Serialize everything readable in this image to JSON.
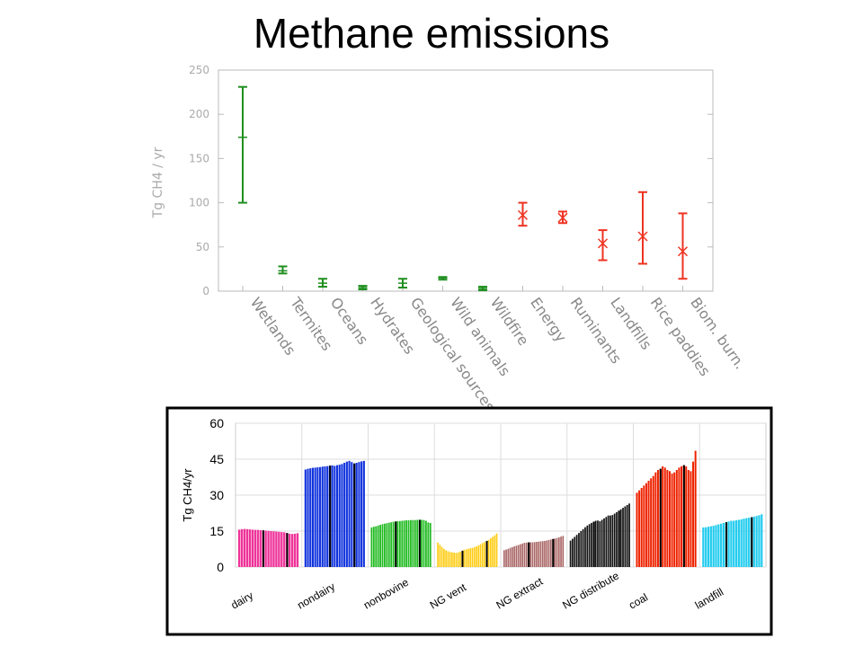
{
  "title": "Methane emissions",
  "chart_data": [
    {
      "type": "errorbar",
      "ylabel": "Tg CH4 / yr",
      "ylim": [
        0,
        250
      ],
      "yticks": [
        "0",
        "50",
        "100",
        "150",
        "200",
        "250"
      ],
      "grid": false,
      "points": [
        {
          "category": "Wetlands",
          "value": 174,
          "low": 100,
          "high": 231,
          "source": "natural",
          "color": "#1f8f1f"
        },
        {
          "category": "Termites",
          "value": 23,
          "low": 20,
          "high": 28,
          "source": "natural",
          "color": "#1f8f1f"
        },
        {
          "category": "Oceans",
          "value": 9,
          "low": 5,
          "high": 14,
          "source": "natural",
          "color": "#1f8f1f"
        },
        {
          "category": "Hydrates",
          "value": 4,
          "low": 2,
          "high": 6,
          "source": "natural",
          "color": "#1f8f1f"
        },
        {
          "category": "Geological sources",
          "value": 9,
          "low": 4,
          "high": 14,
          "source": "natural",
          "color": "#1f8f1f"
        },
        {
          "category": "Wild animals",
          "value": 15,
          "low": 13,
          "high": 16,
          "source": "natural",
          "color": "#1f8f1f"
        },
        {
          "category": "Wildfire",
          "value": 3,
          "low": 1,
          "high": 5,
          "source": "natural",
          "color": "#1f8f1f"
        },
        {
          "category": "Energy",
          "value": 86,
          "low": 74,
          "high": 100,
          "source": "anthropogenic",
          "color": "#ee3322"
        },
        {
          "category": "Ruminants",
          "value": 83,
          "low": 77,
          "high": 90,
          "source": "anthropogenic",
          "color": "#ee3322"
        },
        {
          "category": "Landfills",
          "value": 54,
          "low": 35,
          "high": 69,
          "source": "anthropogenic",
          "color": "#ee3322"
        },
        {
          "category": "Rice paddies",
          "value": 62,
          "low": 31,
          "high": 112,
          "source": "anthropogenic",
          "color": "#ee3322"
        },
        {
          "category": "Biom. burn.",
          "value": 45,
          "low": 14,
          "high": 88,
          "source": "anthropogenic",
          "color": "#ee3322"
        }
      ]
    },
    {
      "type": "bar",
      "ylabel": "Tg CH4/yr",
      "ylim": [
        0,
        60
      ],
      "yticks": [
        "0",
        "15",
        "30",
        "45",
        "60"
      ],
      "groups": [
        {
          "name": "dairy",
          "color": "#ee3399",
          "values": [
            15.6,
            15.8,
            15.9,
            15.8,
            15.7,
            15.6,
            15.5,
            15.5,
            15.4,
            15.3,
            15.2,
            15.1,
            15.0,
            14.9,
            14.8,
            14.7,
            14.6,
            14.5,
            14.2,
            13.9,
            13.8,
            13.9,
            14.1
          ]
        },
        {
          "name": "nondairy",
          "color": "#1133dd",
          "values": [
            40.7,
            41.0,
            41.2,
            41.4,
            41.5,
            41.6,
            41.7,
            41.9,
            42.0,
            42.1,
            42.3,
            42.4,
            42.2,
            42.5,
            42.7,
            43.0,
            43.5,
            44.0,
            44.3,
            43.8,
            43.2,
            43.5,
            43.8,
            44.1,
            44.3
          ]
        },
        {
          "name": "nonbovine",
          "color": "#22bb22",
          "values": [
            16.5,
            16.8,
            17.0,
            17.3,
            17.6,
            17.9,
            18.1,
            18.3,
            18.5,
            18.7,
            18.9,
            19.0,
            19.1,
            19.2,
            19.3,
            19.4,
            19.5,
            19.5,
            19.6,
            19.6,
            19.6,
            19.7,
            19.7,
            19.7,
            19.6,
            19.3,
            18.6,
            18.4
          ]
        },
        {
          "name": "NG vent",
          "color": "#ffcc11",
          "values": [
            10.2,
            9.3,
            8.4,
            7.6,
            7.0,
            6.6,
            6.3,
            6.1,
            6.0,
            5.9,
            6.1,
            6.4,
            6.8,
            7.2,
            7.4,
            7.6,
            7.8,
            8.0,
            8.3,
            8.6,
            9.0,
            9.5,
            10.0,
            10.4,
            10.9,
            11.3,
            12.0,
            12.6,
            13.2,
            14.0
          ]
        },
        {
          "name": "NG extract",
          "color": "#aa6666",
          "values": [
            7.0,
            7.3,
            7.6,
            8.0,
            8.3,
            8.6,
            8.9,
            9.2,
            9.5,
            9.8,
            10.1,
            10.2,
            10.3,
            10.3,
            10.3,
            10.4,
            10.5,
            10.6,
            10.7,
            10.8,
            10.9,
            11.1,
            11.3,
            11.5,
            11.7,
            11.9,
            12.1,
            12.4,
            12.7,
            13.0
          ]
        },
        {
          "name": "NG distribute",
          "color": "#111111",
          "values": [
            11.0,
            11.8,
            12.6,
            13.4,
            14.2,
            15.0,
            15.8,
            16.6,
            17.3,
            17.9,
            18.4,
            18.9,
            19.3,
            19.4,
            19.1,
            19.7,
            20.3,
            20.9,
            21.5,
            21.5,
            21.7,
            22.3,
            22.9,
            23.5,
            24.1,
            24.7,
            25.3,
            25.9,
            26.5
          ]
        },
        {
          "name": "coal",
          "color": "#ee2200",
          "values": [
            31.0,
            32.0,
            33.0,
            34.0,
            35.0,
            36.0,
            37.0,
            38.0,
            39.5,
            40.5,
            41.0,
            42.0,
            41.5,
            40.5,
            40.0,
            39.0,
            39.5,
            40.5,
            41.5,
            42.0,
            42.5,
            42.0,
            40.5,
            40.0,
            44.0,
            48.5
          ]
        },
        {
          "name": "landfill",
          "color": "#22ccee",
          "values": [
            16.5,
            16.6,
            16.8,
            17.0,
            17.2,
            17.5,
            17.8,
            18.1,
            18.4,
            18.7,
            19.0,
            19.3,
            19.3,
            19.5,
            19.7,
            19.9,
            20.2,
            20.4,
            20.6,
            20.8,
            21.0,
            21.3,
            21.6,
            22.0
          ]
        }
      ]
    }
  ],
  "colors": {
    "natural": "#1f8f1f",
    "anthropogenic": "#ee3322",
    "bottom_frame": "#000000"
  }
}
